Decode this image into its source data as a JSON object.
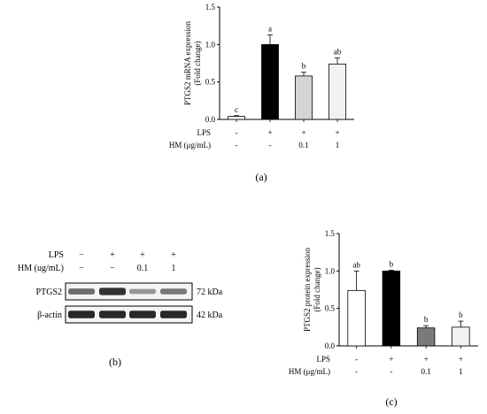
{
  "chart_data": [
    {
      "id": "a",
      "type": "bar",
      "panel_label": "(a)",
      "ylabel": "PTGS2 mRNA expression\n(Fold change)",
      "ylim": [
        0,
        1.5
      ],
      "yticks": [
        "0.0",
        "0.5",
        "1.0",
        "1.5"
      ],
      "values": [
        0.04,
        1.0,
        0.58,
        0.74
      ],
      "errors": [
        0.01,
        0.13,
        0.05,
        0.08
      ],
      "significance": [
        "c",
        "a",
        "b",
        "ab"
      ],
      "bar_colors": [
        "#ffffff",
        "#000000",
        "#d4d4d4",
        "#f2f2f2"
      ],
      "treatment_rows": [
        {
          "label": "LPS",
          "values": [
            "-",
            "+",
            "+",
            "+"
          ]
        },
        {
          "label": "HM (μg/mL)",
          "values": [
            "-",
            "-",
            "0.1",
            "1"
          ]
        }
      ]
    },
    {
      "id": "c",
      "type": "bar",
      "panel_label": "(c)",
      "ylabel": "PTGS2 protein expression\n(Fold change)",
      "ylim": [
        0,
        1.5
      ],
      "yticks": [
        "0.0",
        "0.5",
        "1.0",
        "1.5"
      ],
      "values": [
        0.74,
        1.0,
        0.24,
        0.25
      ],
      "errors": [
        0.26,
        0.01,
        0.03,
        0.08
      ],
      "significance": [
        "ab",
        "b",
        "b",
        "b"
      ],
      "bar_colors": [
        "#ffffff",
        "#000000",
        "#7a7a7a",
        "#f2f2f2"
      ],
      "treatment_rows": [
        {
          "label": "LPS",
          "values": [
            "-",
            "+",
            "+",
            "+"
          ]
        },
        {
          "label": "HM (μg/mL)",
          "values": [
            "-",
            "-",
            "0.1",
            "1"
          ]
        }
      ]
    }
  ],
  "blot": {
    "panel_label": "(b)",
    "treatment_rows": [
      {
        "label": "LPS",
        "values": [
          "−",
          "+",
          "+",
          "+"
        ]
      },
      {
        "label": "HM (ug/mL)",
        "values": [
          "−",
          "−",
          "0.1",
          "1"
        ]
      }
    ],
    "bands": [
      {
        "name": "PTGS2",
        "size": "72 kDa",
        "intensities": [
          0.55,
          0.85,
          0.35,
          0.5
        ]
      },
      {
        "name": "β-actin",
        "size": "42 kDa",
        "intensities": [
          0.9,
          0.9,
          0.9,
          0.9
        ]
      }
    ]
  }
}
